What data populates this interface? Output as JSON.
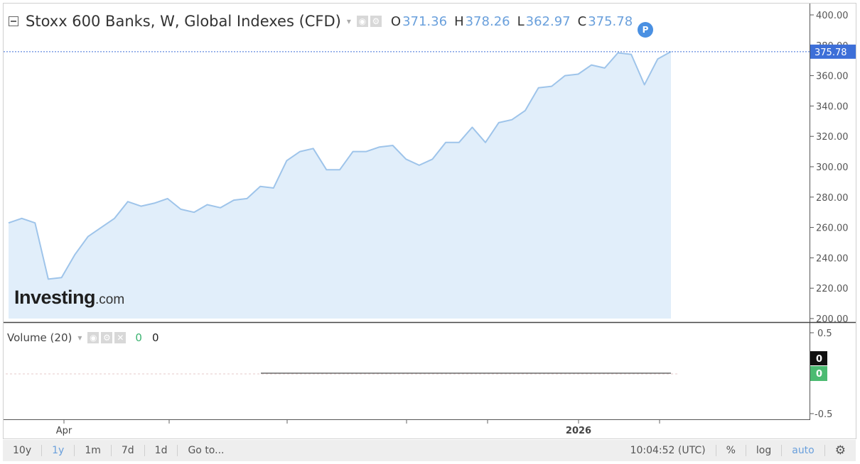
{
  "header": {
    "title": "Stoxx 600 Banks, W, Global Indexes (CFD)",
    "open_key": "O",
    "open": "371.36",
    "high_key": "H",
    "high": "378.26",
    "low_key": "L",
    "low": "362.97",
    "close_key": "C",
    "close": "375.78",
    "badge": "P"
  },
  "volume_legend": {
    "label": "Volume (20)",
    "value_a": "0",
    "value_b": "0"
  },
  "volume_axis": {
    "ticks": [
      "0.5",
      "-0.5"
    ],
    "tag_top": "0",
    "tag_bottom": "0"
  },
  "logo": {
    "main": "Investing",
    "suffix": ".com"
  },
  "bottom_bar": {
    "ranges": [
      "10y",
      "1y",
      "1m",
      "7d",
      "1d"
    ],
    "active_range": "1y",
    "goto": "Go to...",
    "time": "10:04:52 (UTC)",
    "percent": "%",
    "log": "log",
    "auto": "auto"
  },
  "colors": {
    "line": "#9ec4ea",
    "fill": "#e1eefa",
    "accent": "#6aa0dc",
    "price_tag": "#3d6fd8"
  },
  "chart_data": {
    "type": "area",
    "title": "Stoxx 600 Banks, W, Global Indexes (CFD)",
    "xlabel": "",
    "ylabel": "",
    "ylim": [
      200,
      400
    ],
    "y_ticks": [
      400,
      380,
      360,
      340,
      320,
      300,
      280,
      260,
      240,
      220,
      200
    ],
    "x_tick_labels": [
      "Apr",
      "2026"
    ],
    "last_price": "375.78",
    "grid": false,
    "series": [
      {
        "values": [
          263,
          266,
          263,
          226,
          227,
          242,
          254,
          260,
          266,
          277,
          274,
          276,
          279,
          272,
          270,
          275,
          273,
          278,
          279,
          287,
          286,
          304,
          310,
          312,
          298,
          298,
          310,
          310,
          313,
          314,
          305,
          301,
          305,
          316,
          316,
          326,
          316,
          329,
          331,
          337,
          352,
          353,
          360,
          361,
          367,
          365,
          375,
          374,
          354,
          371,
          375.78
        ]
      }
    ]
  }
}
